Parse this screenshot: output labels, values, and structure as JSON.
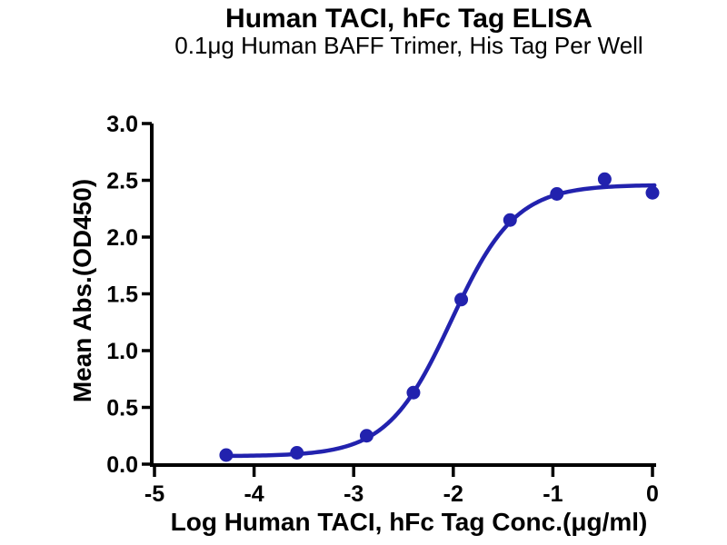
{
  "chart_data": {
    "type": "scatter",
    "title": "Human TACI, hFc Tag ELISA",
    "subtitle": "0.1μg Human BAFF Trimer, His Tag Per Well",
    "xlabel": "Log Human TACI, hFc Tag Conc.(μg/ml)",
    "ylabel": "Mean Abs.(OD450)",
    "xlim": [
      -5,
      0
    ],
    "ylim": [
      0,
      3
    ],
    "x_ticks": [
      "-5",
      "-4",
      "-3",
      "-2",
      "-1",
      "0"
    ],
    "y_ticks": [
      "0.0",
      "0.5",
      "1.0",
      "1.5",
      "2.0",
      "2.5",
      "3.0"
    ],
    "grid": false,
    "legend": false,
    "axis_color": "#000000",
    "accent_color": "#2222AE",
    "series": [
      {
        "points": [
          {
            "x": -4.28,
            "y": 0.08
          },
          {
            "x": -3.57,
            "y": 0.1
          },
          {
            "x": -2.87,
            "y": 0.25
          },
          {
            "x": -2.4,
            "y": 0.63
          },
          {
            "x": -1.92,
            "y": 1.45
          },
          {
            "x": -1.43,
            "y": 2.15
          },
          {
            "x": -0.96,
            "y": 2.38
          },
          {
            "x": -0.48,
            "y": 2.51
          },
          {
            "x": 0.0,
            "y": 2.39
          }
        ],
        "fit_4pl": {
          "bottom": 0.07,
          "top": 2.46,
          "log_ec50": -2.02,
          "hill_slope": 1.35
        }
      }
    ]
  }
}
